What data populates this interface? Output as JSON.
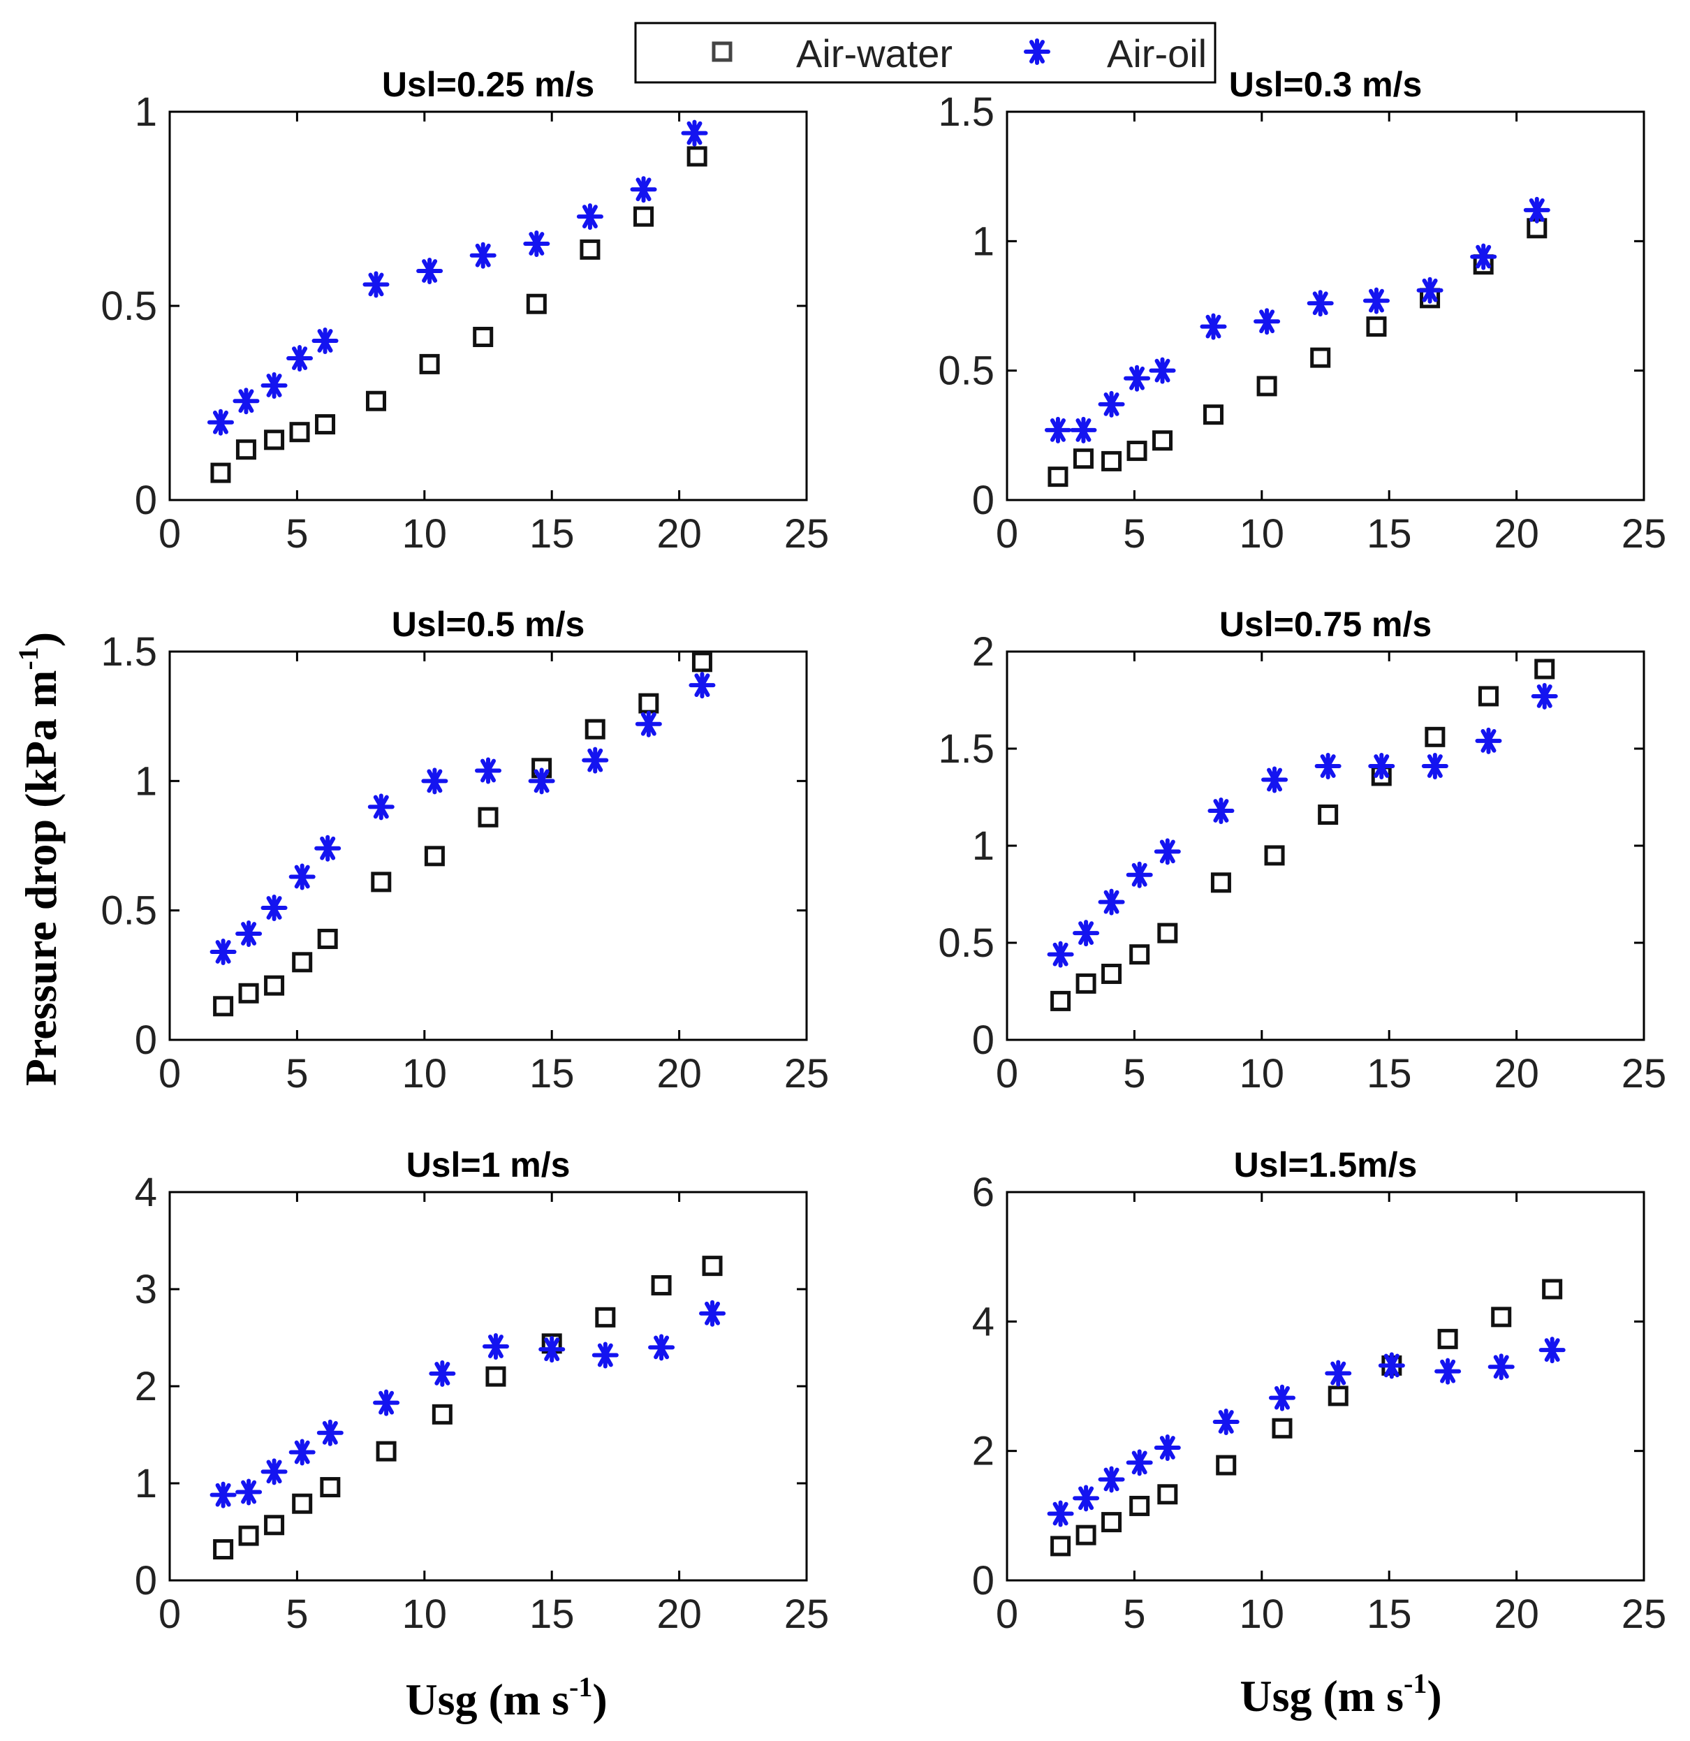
{
  "figure": {
    "ylabel": {
      "main": "Pressure drop (kPa m",
      "sup": "-1",
      "close": ")"
    },
    "xlabel": {
      "main": "Usg (m s",
      "sup": "-1",
      "close": ")"
    }
  },
  "legend": {
    "placement": "top-center",
    "items": [
      {
        "label": "Air-water",
        "marker": "square",
        "color": "#000000"
      },
      {
        "label": "Air-oil",
        "marker": "asterisk",
        "color": "#1414f0"
      }
    ]
  },
  "chart_data": [
    {
      "type": "scatter",
      "title": "Usl=0.25 m/s",
      "xlim": [
        0,
        25
      ],
      "ylim": [
        0,
        1
      ],
      "xticks": [
        "0",
        "5",
        "10",
        "15",
        "20",
        "25"
      ],
      "yticks": [
        "0",
        "0.5",
        "1"
      ],
      "series": [
        {
          "name": "Air-water",
          "points": [
            [
              2,
              0.07
            ],
            [
              3,
              0.13
            ],
            [
              4.1,
              0.155
            ],
            [
              5.1,
              0.175
            ],
            [
              6.1,
              0.195
            ],
            [
              8.1,
              0.255
            ],
            [
              10.2,
              0.35
            ],
            [
              12.3,
              0.42
            ],
            [
              14.4,
              0.505
            ],
            [
              16.5,
              0.645
            ],
            [
              18.6,
              0.73
            ],
            [
              20.7,
              0.885
            ]
          ]
        },
        {
          "name": "Air-oil",
          "points": [
            [
              2,
              0.2
            ],
            [
              3,
              0.255
            ],
            [
              4.1,
              0.295
            ],
            [
              5.1,
              0.365
            ],
            [
              6.1,
              0.41
            ],
            [
              8.1,
              0.555
            ],
            [
              10.2,
              0.59
            ],
            [
              12.3,
              0.63
            ],
            [
              14.4,
              0.66
            ],
            [
              16.5,
              0.73
            ],
            [
              18.6,
              0.8
            ],
            [
              20.6,
              0.945
            ]
          ]
        }
      ]
    },
    {
      "type": "scatter",
      "title": "Usl=0.3 m/s",
      "xlim": [
        0,
        25
      ],
      "ylim": [
        0,
        1.5
      ],
      "xticks": [
        "0",
        "5",
        "10",
        "15",
        "20",
        "25"
      ],
      "yticks": [
        "0",
        "0.5",
        "1",
        "1.5"
      ],
      "series": [
        {
          "name": "Air-water",
          "points": [
            [
              2,
              0.09
            ],
            [
              3,
              0.16
            ],
            [
              4.1,
              0.15
            ],
            [
              5.1,
              0.19
            ],
            [
              6.1,
              0.23
            ],
            [
              8.1,
              0.33
            ],
            [
              10.2,
              0.44
            ],
            [
              12.3,
              0.55
            ],
            [
              14.5,
              0.67
            ],
            [
              16.6,
              0.78
            ],
            [
              18.7,
              0.91
            ],
            [
              20.8,
              1.05
            ]
          ]
        },
        {
          "name": "Air-oil",
          "points": [
            [
              2,
              0.27
            ],
            [
              3,
              0.27
            ],
            [
              4.1,
              0.37
            ],
            [
              5.1,
              0.47
            ],
            [
              6.1,
              0.5
            ],
            [
              8.1,
              0.67
            ],
            [
              10.2,
              0.69
            ],
            [
              12.3,
              0.76
            ],
            [
              14.5,
              0.77
            ],
            [
              16.6,
              0.81
            ],
            [
              18.7,
              0.94
            ],
            [
              20.8,
              1.12
            ]
          ]
        }
      ]
    },
    {
      "type": "scatter",
      "title": "Usl=0.5 m/s",
      "xlim": [
        0,
        25
      ],
      "ylim": [
        0,
        1.5
      ],
      "xticks": [
        "0",
        "5",
        "10",
        "15",
        "20",
        "25"
      ],
      "yticks": [
        "0",
        "0.5",
        "1",
        "1.5"
      ],
      "series": [
        {
          "name": "Air-water",
          "points": [
            [
              2.1,
              0.13
            ],
            [
              3.1,
              0.18
            ],
            [
              4.1,
              0.21
            ],
            [
              5.2,
              0.3
            ],
            [
              6.2,
              0.39
            ],
            [
              8.3,
              0.61
            ],
            [
              10.4,
              0.71
            ],
            [
              12.5,
              0.86
            ],
            [
              14.6,
              1.05
            ],
            [
              16.7,
              1.2
            ],
            [
              18.8,
              1.3
            ],
            [
              20.9,
              1.46
            ]
          ]
        },
        {
          "name": "Air-oil",
          "points": [
            [
              2.1,
              0.34
            ],
            [
              3.1,
              0.41
            ],
            [
              4.1,
              0.51
            ],
            [
              5.2,
              0.63
            ],
            [
              6.2,
              0.74
            ],
            [
              8.3,
              0.9
            ],
            [
              10.4,
              1.0
            ],
            [
              12.5,
              1.04
            ],
            [
              14.6,
              1.0
            ],
            [
              16.7,
              1.08
            ],
            [
              18.8,
              1.22
            ],
            [
              20.9,
              1.37
            ]
          ]
        }
      ]
    },
    {
      "type": "scatter",
      "title": "Usl=0.75 m/s",
      "xlim": [
        0,
        25
      ],
      "ylim": [
        0,
        2
      ],
      "xticks": [
        "0",
        "5",
        "10",
        "15",
        "20",
        "25"
      ],
      "yticks": [
        "0",
        "0.5",
        "1",
        "1.5",
        "2"
      ],
      "series": [
        {
          "name": "Air-water",
          "points": [
            [
              2.1,
              0.2
            ],
            [
              3.1,
              0.29
            ],
            [
              4.1,
              0.34
            ],
            [
              5.2,
              0.44
            ],
            [
              6.3,
              0.55
            ],
            [
              8.4,
              0.81
            ],
            [
              10.5,
              0.95
            ],
            [
              12.6,
              1.16
            ],
            [
              14.7,
              1.36
            ],
            [
              16.8,
              1.56
            ],
            [
              18.9,
              1.77
            ],
            [
              21.1,
              1.91
            ]
          ]
        },
        {
          "name": "Air-oil",
          "points": [
            [
              2.1,
              0.44
            ],
            [
              3.1,
              0.55
            ],
            [
              4.1,
              0.71
            ],
            [
              5.2,
              0.85
            ],
            [
              6.3,
              0.97
            ],
            [
              8.4,
              1.18
            ],
            [
              10.5,
              1.34
            ],
            [
              12.6,
              1.41
            ],
            [
              14.7,
              1.41
            ],
            [
              16.8,
              1.41
            ],
            [
              18.9,
              1.54
            ],
            [
              21.1,
              1.77
            ]
          ]
        }
      ]
    },
    {
      "type": "scatter",
      "title": "Usl=1 m/s",
      "xlim": [
        0,
        25
      ],
      "ylim": [
        0,
        4
      ],
      "xticks": [
        "0",
        "5",
        "10",
        "15",
        "20",
        "25"
      ],
      "yticks": [
        "0",
        "1",
        "2",
        "3",
        "4"
      ],
      "series": [
        {
          "name": "Air-water",
          "points": [
            [
              2.1,
              0.32
            ],
            [
              3.1,
              0.46
            ],
            [
              4.1,
              0.57
            ],
            [
              5.2,
              0.79
            ],
            [
              6.3,
              0.96
            ],
            [
              8.5,
              1.33
            ],
            [
              10.7,
              1.71
            ],
            [
              12.8,
              2.1
            ],
            [
              15.0,
              2.44
            ],
            [
              17.1,
              2.71
            ],
            [
              19.3,
              3.04
            ],
            [
              21.3,
              3.24
            ]
          ]
        },
        {
          "name": "Air-oil",
          "points": [
            [
              2.1,
              0.88
            ],
            [
              3.1,
              0.91
            ],
            [
              4.1,
              1.12
            ],
            [
              5.2,
              1.32
            ],
            [
              6.3,
              1.52
            ],
            [
              8.5,
              1.83
            ],
            [
              10.7,
              2.13
            ],
            [
              12.8,
              2.41
            ],
            [
              15.0,
              2.38
            ],
            [
              17.1,
              2.32
            ],
            [
              19.3,
              2.4
            ],
            [
              21.3,
              2.75
            ]
          ]
        }
      ]
    },
    {
      "type": "scatter",
      "title": "Usl=1.5m/s",
      "xlim": [
        0,
        25
      ],
      "ylim": [
        0,
        6
      ],
      "xticks": [
        "0",
        "5",
        "10",
        "15",
        "20",
        "25"
      ],
      "yticks": [
        "0",
        "2",
        "4",
        "6"
      ],
      "series": [
        {
          "name": "Air-water",
          "points": [
            [
              2.1,
              0.53
            ],
            [
              3.1,
              0.7
            ],
            [
              4.1,
              0.9
            ],
            [
              5.2,
              1.15
            ],
            [
              6.3,
              1.33
            ],
            [
              8.6,
              1.78
            ],
            [
              10.8,
              2.35
            ],
            [
              13.0,
              2.85
            ],
            [
              15.1,
              3.32
            ],
            [
              17.3,
              3.73
            ],
            [
              19.4,
              4.07
            ],
            [
              21.4,
              4.5
            ]
          ]
        },
        {
          "name": "Air-oil",
          "points": [
            [
              2.1,
              1.03
            ],
            [
              3.1,
              1.27
            ],
            [
              4.1,
              1.56
            ],
            [
              5.2,
              1.82
            ],
            [
              6.3,
              2.05
            ],
            [
              8.6,
              2.45
            ],
            [
              10.8,
              2.82
            ],
            [
              13.0,
              3.2
            ],
            [
              15.1,
              3.32
            ],
            [
              17.3,
              3.23
            ],
            [
              19.4,
              3.3
            ],
            [
              21.4,
              3.56
            ]
          ]
        }
      ]
    }
  ]
}
